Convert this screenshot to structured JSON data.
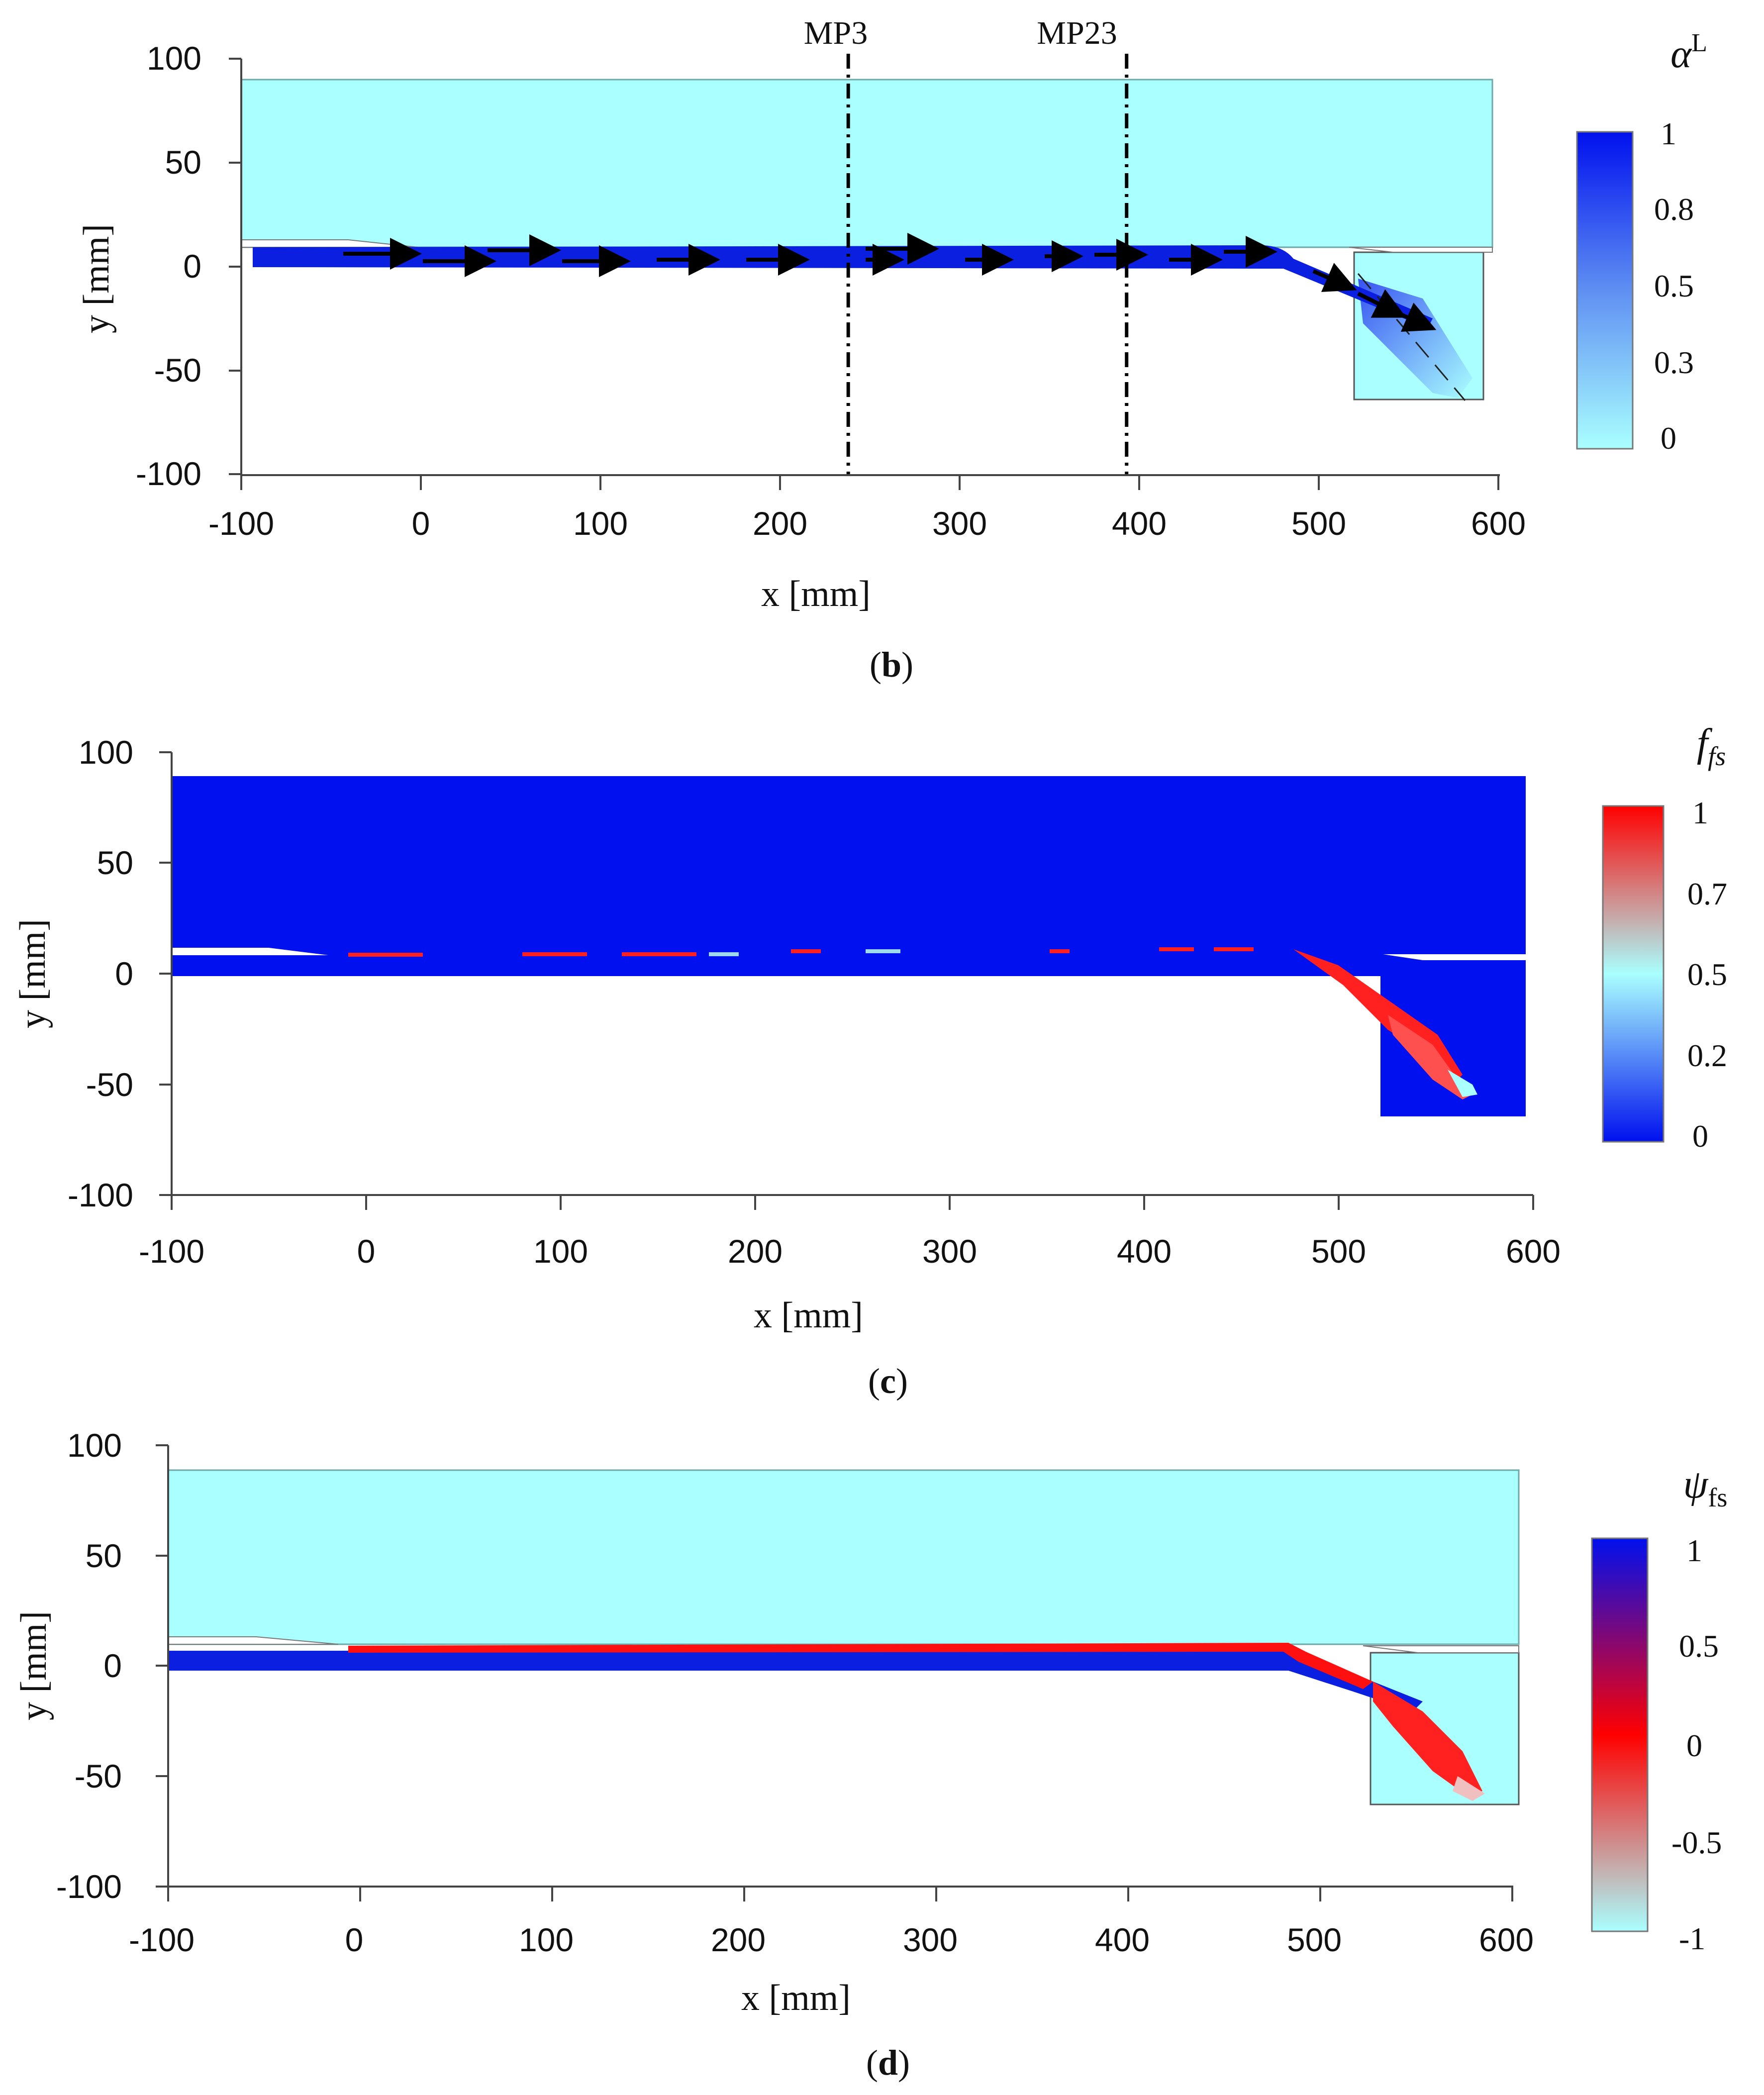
{
  "chart_data": [
    {
      "type": "heatmap",
      "panel_label": "b",
      "title": "",
      "colorbar_title": "α",
      "colorbar_title_sup": "L",
      "xlabel": "x [mm]",
      "ylabel": "y [mm]",
      "xlim": [
        -100,
        600
      ],
      "ylim": [
        -100,
        100
      ],
      "x_ticks": [
        "-100",
        "0",
        "100",
        "200",
        "300",
        "400",
        "500",
        "600"
      ],
      "y_ticks": [
        "100",
        "50",
        "0",
        "-50",
        "-100"
      ],
      "colorbar_ticks": [
        "1",
        "0.8",
        "0.5",
        "0.3",
        "0"
      ],
      "colormap": [
        "#00e8ee",
        "#0010ee"
      ],
      "background_color": "#aaffff",
      "jet_color": "#0b1fe0",
      "probe_lines": [
        {
          "label": "MP3",
          "x": 238
        },
        {
          "label": "MP23",
          "x": 393
        }
      ]
    },
    {
      "type": "heatmap",
      "panel_label": "c",
      "title": "",
      "colorbar_title": "f",
      "colorbar_title_sub": "fs",
      "xlabel": "x [mm]",
      "ylabel": "y [mm]",
      "xlim": [
        -100,
        600
      ],
      "ylim": [
        -100,
        100
      ],
      "x_ticks": [
        "-100",
        "0",
        "100",
        "200",
        "300",
        "400",
        "500",
        "600"
      ],
      "y_ticks": [
        "100",
        "50",
        "0",
        "-50",
        "-100"
      ],
      "colorbar_ticks": [
        "1",
        "0.7",
        "0.5",
        "0.2",
        "0"
      ],
      "colormap": [
        "#0010ee",
        "#aaffff",
        "#ff0000"
      ],
      "background_color": "#0010ee",
      "interface_color": "#ff2020"
    },
    {
      "type": "heatmap",
      "panel_label": "d",
      "title": "",
      "colorbar_title": "ψ",
      "colorbar_title_sub": "fs",
      "xlabel": "x [mm]",
      "ylabel": "y [mm]",
      "xlim": [
        -100,
        600
      ],
      "ylim": [
        -100,
        100
      ],
      "x_ticks": [
        "-100",
        "0",
        "100",
        "200",
        "300",
        "400",
        "500",
        "600"
      ],
      "y_ticks": [
        "100",
        "50",
        "0",
        "-50",
        "-100"
      ],
      "colorbar_ticks": [
        "1",
        "0.5",
        "0",
        "-0.5",
        "-1"
      ],
      "colormap": [
        "#aaffff",
        "#ff0000",
        "#0010ee"
      ],
      "background_color": "#aaffff",
      "jet_color": "#0b1fe0",
      "interface_color": "#ff1010"
    }
  ]
}
